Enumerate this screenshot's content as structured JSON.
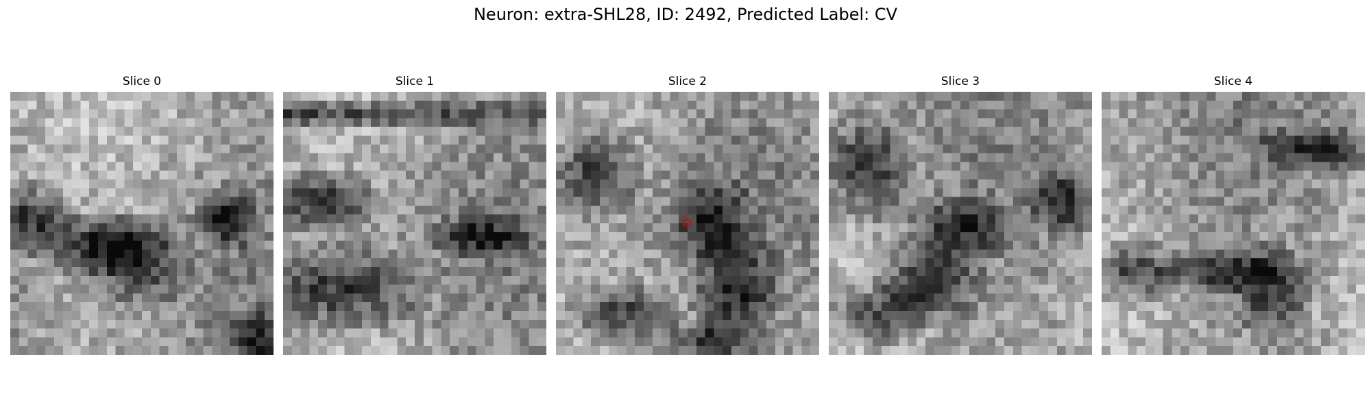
{
  "figure": {
    "title": "Neuron: extra-SHL28, ID: 2492, Predicted Label: CV"
  },
  "slices": [
    {
      "label": "Slice 0",
      "seed": 11,
      "has_marker": false
    },
    {
      "label": "Slice 1",
      "seed": 23,
      "has_marker": false
    },
    {
      "label": "Slice 2",
      "seed": 37,
      "has_marker": true
    },
    {
      "label": "Slice 3",
      "seed": 49,
      "has_marker": false
    },
    {
      "label": "Slice 4",
      "seed": 61,
      "has_marker": false
    }
  ],
  "colors": {
    "colormap": "grayscale",
    "marker": "#e00000"
  }
}
